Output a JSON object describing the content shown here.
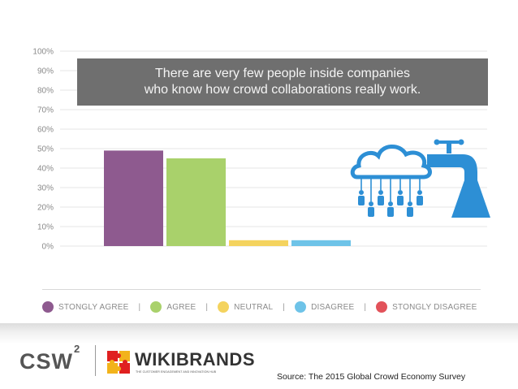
{
  "banner": {
    "line1": "There are very few people inside companies",
    "line2": "who know how crowd collaborations really work."
  },
  "chart_data": {
    "type": "bar",
    "categories": [
      "STONGLY AGREE",
      "AGREE",
      "NEUTRAL",
      "DISAGREE",
      "STONGLY DISAGREE"
    ],
    "values": [
      49,
      45,
      3,
      3,
      0
    ],
    "colors": [
      "#8e5a8f",
      "#a9d16b",
      "#f4d35e",
      "#6ec3e8",
      "#e2525a"
    ],
    "yticks": [
      "100%",
      "90%",
      "80%",
      "70%",
      "60%",
      "50%",
      "40%",
      "30%",
      "20%",
      "10%",
      "0%"
    ],
    "ylim": [
      0,
      100
    ],
    "grid": true,
    "legend_position": "bottom"
  },
  "legend": {
    "separator": "|",
    "items": [
      {
        "label": "STONGLY AGREE",
        "color": "#8e5a8f"
      },
      {
        "label": "AGREE",
        "color": "#a9d16b"
      },
      {
        "label": "NEUTRAL",
        "color": "#f4d35e"
      },
      {
        "label": "DISAGREE",
        "color": "#6ec3e8"
      },
      {
        "label": "STONGLY DISAGREE",
        "color": "#e2525a"
      }
    ]
  },
  "footer": {
    "csw_logo": "CSW",
    "csw_sup": "2",
    "wikibrands_logo": "WIKIBRANDS",
    "wikibrands_tagline": "THE CUSTOMER ENGAGEMENT AND INNOVATION HUB",
    "source": "Source: The 2015 Global Crowd Economy Survey"
  },
  "icons": [
    "crowd-cloud-tap-icon",
    "puzzle-logo-icon"
  ]
}
